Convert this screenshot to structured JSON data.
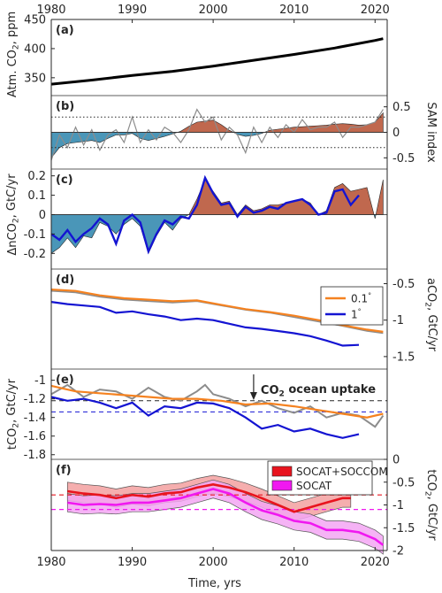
{
  "figure": {
    "x_domain": [
      1980,
      2021.5
    ],
    "x_ticks": [
      1980,
      1990,
      2000,
      2010,
      2020
    ],
    "x_tick_labels": [
      "1980",
      "1990",
      "2000",
      "2010",
      "2020"
    ],
    "xlabel": "Time, yrs",
    "colors": {
      "axis": "#262626",
      "positive_fill": "#c0684e",
      "negative_fill": "#4a96b8",
      "gray_line": "#8c8c8c",
      "orange": "#f58220",
      "blue": "#1414d2",
      "red": "#e8141e",
      "red_band": "#f3a0a0",
      "magenta": "#f018f0",
      "magenta_band": "#f3a6f3"
    }
  },
  "chart_data": [
    {
      "panel_label": "(a)",
      "type": "line",
      "ylabel_parts": [
        "Atm. CO",
        "2",
        ", ppm"
      ],
      "ylim": [
        330,
        450
      ],
      "y_ticks": [
        350,
        400,
        450
      ],
      "y_tick_labels": [
        "350",
        "400",
        "450"
      ],
      "y_axis_side": "left",
      "series": [
        {
          "x": [
            1980,
            1985,
            1990,
            1995,
            2000,
            2005,
            2010,
            2015,
            2020,
            2021
          ],
          "values": [
            339,
            346,
            354,
            361,
            370,
            380,
            390,
            401,
            414,
            417
          ]
        }
      ]
    },
    {
      "panel_label": "(b)",
      "type": "area",
      "ylabel": "SAM index",
      "ylim": [
        -0.72,
        0.72
      ],
      "y_ticks": [
        -0.5,
        0,
        0.5
      ],
      "y_tick_labels": [
        "-0.5",
        "0",
        "0.5"
      ],
      "y_axis_side": "right",
      "dotted_lines": [
        0.3,
        -0.3
      ],
      "annual": {
        "x": [
          1980,
          1981,
          1982,
          1983,
          1984,
          1985,
          1986,
          1987,
          1988,
          1989,
          1990,
          1991,
          1992,
          1993,
          1994,
          1995,
          1996,
          1997,
          1998,
          1999,
          2000,
          2001,
          2002,
          2003,
          2004,
          2005,
          2006,
          2007,
          2008,
          2009,
          2010,
          2011,
          2012,
          2013,
          2014,
          2015,
          2016,
          2017,
          2018,
          2019,
          2020,
          2021
        ],
        "values": [
          -0.55,
          -0.05,
          -0.3,
          0.1,
          -0.25,
          0.05,
          -0.35,
          -0.05,
          0.05,
          -0.2,
          0.3,
          -0.2,
          0.05,
          -0.15,
          0.1,
          0.0,
          -0.2,
          0.05,
          0.45,
          0.2,
          0.3,
          -0.15,
          0.1,
          -0.05,
          -0.4,
          0.1,
          -0.2,
          0.1,
          -0.1,
          0.15,
          0.0,
          0.25,
          0.05,
          0.1,
          0.1,
          0.2,
          -0.1,
          0.1,
          0.1,
          0.15,
          0.2,
          0.45
        ]
      },
      "smoothed": {
        "x": [
          1980,
          1981,
          1982,
          1983,
          1984,
          1985,
          1986,
          1987,
          1988,
          1989,
          1990,
          1991,
          1992,
          1993,
          1994,
          1995,
          1996,
          1997,
          1998,
          1999,
          2000,
          2001,
          2002,
          2003,
          2004,
          2005,
          2006,
          2007,
          2008,
          2009,
          2010,
          2011,
          2012,
          2013,
          2014,
          2015,
          2016,
          2017,
          2018,
          2019,
          2020,
          2021
        ],
        "values": [
          -0.5,
          -0.3,
          -0.22,
          -0.2,
          -0.18,
          -0.16,
          -0.2,
          -0.12,
          -0.05,
          -0.05,
          -0.02,
          -0.12,
          -0.16,
          -0.12,
          -0.08,
          -0.03,
          0.02,
          0.12,
          0.2,
          0.22,
          0.24,
          0.15,
          0.04,
          -0.04,
          -0.08,
          -0.06,
          -0.02,
          0.04,
          0.06,
          0.08,
          0.1,
          0.11,
          0.12,
          0.13,
          0.14,
          0.16,
          0.17,
          0.16,
          0.14,
          0.15,
          0.2,
          0.38
        ]
      }
    },
    {
      "panel_label": "(c)",
      "type": "area",
      "ylabel_parts": [
        "ΔnCO",
        "2",
        ", GtC/yr"
      ],
      "ylim": [
        -0.235,
        0.235
      ],
      "y_ticks": [
        -0.2,
        -0.1,
        0,
        0.1,
        0.2
      ],
      "y_tick_labels": [
        "-0.2",
        "-0.1",
        "0",
        "0.1",
        "0.2"
      ],
      "y_axis_side": "left",
      "fill_series": {
        "x": [
          1980,
          1981,
          1982,
          1983,
          1984,
          1985,
          1986,
          1987,
          1988,
          1989,
          1990,
          1991,
          1992,
          1993,
          1994,
          1995,
          1996,
          1997,
          1998,
          1999,
          2000,
          2001,
          2002,
          2003,
          2004,
          2005,
          2006,
          2007,
          2008,
          2009,
          2010,
          2011,
          2012,
          2013,
          2014,
          2015,
          2016,
          2017,
          2018,
          2019,
          2020,
          2021
        ],
        "values": [
          -0.2,
          -0.17,
          -0.12,
          -0.17,
          -0.11,
          -0.12,
          -0.04,
          -0.06,
          -0.1,
          -0.05,
          -0.02,
          -0.06,
          -0.2,
          -0.11,
          -0.04,
          -0.08,
          -0.02,
          0.0,
          0.08,
          0.18,
          0.12,
          0.06,
          0.07,
          0.0,
          0.05,
          0.02,
          0.03,
          0.05,
          0.05,
          0.06,
          0.07,
          0.08,
          0.06,
          0.0,
          0.02,
          0.14,
          0.16,
          0.12,
          0.13,
          0.14,
          -0.02,
          0.18
        ]
      },
      "line_series": {
        "name": "1°",
        "x": [
          1980,
          1981,
          1982,
          1983,
          1984,
          1985,
          1986,
          1987,
          1988,
          1989,
          1990,
          1991,
          1992,
          1993,
          1994,
          1995,
          1996,
          1997,
          1998,
          1999,
          2000,
          2001,
          2002,
          2003,
          2004,
          2005,
          2006,
          2007,
          2008,
          2009,
          2010,
          2011,
          2012,
          2013,
          2014,
          2015,
          2016,
          2017,
          2018
        ],
        "values": [
          -0.1,
          -0.13,
          -0.08,
          -0.14,
          -0.1,
          -0.07,
          -0.02,
          -0.05,
          -0.15,
          -0.03,
          0.0,
          -0.04,
          -0.19,
          -0.1,
          -0.03,
          -0.05,
          -0.01,
          -0.02,
          0.05,
          0.19,
          0.11,
          0.05,
          0.06,
          -0.01,
          0.04,
          0.01,
          0.02,
          0.04,
          0.03,
          0.06,
          0.07,
          0.08,
          0.05,
          0.0,
          0.01,
          0.12,
          0.13,
          0.05,
          0.1
        ]
      }
    },
    {
      "panel_label": "(d)",
      "type": "line",
      "ylabel_parts": [
        "aCO",
        "2",
        ", GtC/yr"
      ],
      "ylim": [
        -1.55,
        -0.3
      ],
      "y_ticks": [
        -1.5,
        -1,
        -0.5
      ],
      "y_tick_labels": [
        "-1.5",
        "-1",
        "-0.5"
      ],
      "y_axis_side": "right",
      "legend": {
        "position": "top-right",
        "entries": [
          {
            "label": "0.1",
            "sup": "°",
            "color_key": "orange"
          },
          {
            "label": "1",
            "sup": "°",
            "color_key": "blue"
          }
        ]
      },
      "series": [
        {
          "color_key": "gray_line",
          "x": [
            1980,
            1983,
            1986,
            1989,
            1992,
            1995,
            1998,
            2001,
            2004,
            2007,
            2010,
            2013,
            2016,
            2019,
            2021
          ],
          "values": [
            -0.6,
            -0.62,
            -0.68,
            -0.72,
            -0.74,
            -0.76,
            -0.74,
            -0.8,
            -0.86,
            -0.9,
            -0.96,
            -1.02,
            -1.08,
            -1.15,
            -1.18
          ]
        },
        {
          "color_key": "orange",
          "x": [
            1980,
            1983,
            1986,
            1989,
            1992,
            1995,
            1998,
            2001,
            2004,
            2007,
            2010,
            2013,
            2016,
            2019,
            2021
          ],
          "values": [
            -0.58,
            -0.6,
            -0.66,
            -0.7,
            -0.72,
            -0.74,
            -0.73,
            -0.79,
            -0.85,
            -0.89,
            -0.94,
            -1.0,
            -1.07,
            -1.13,
            -1.16
          ]
        },
        {
          "color_key": "blue",
          "x": [
            1980,
            1982,
            1984,
            1986,
            1988,
            1990,
            1992,
            1994,
            1996,
            1998,
            2000,
            2002,
            2004,
            2006,
            2008,
            2010,
            2012,
            2014,
            2016,
            2018
          ],
          "values": [
            -0.75,
            -0.78,
            -0.8,
            -0.82,
            -0.9,
            -0.88,
            -0.92,
            -0.95,
            -1.0,
            -0.98,
            -1.0,
            -1.05,
            -1.1,
            -1.12,
            -1.15,
            -1.18,
            -1.22,
            -1.28,
            -1.35,
            -1.34
          ]
        }
      ]
    },
    {
      "panel_label": "(e)",
      "type": "line",
      "ylabel_parts": [
        "tCO",
        "2",
        ", GtC/yr"
      ],
      "ylim": [
        -1.85,
        -0.88
      ],
      "y_ticks": [
        -1.8,
        -1.6,
        -1.4,
        -1.2,
        -1.0
      ],
      "y_tick_labels": [
        "-1.8",
        "-1.6",
        "-1.4",
        "-1.2",
        "-1"
      ],
      "y_axis_side": "left",
      "annotation": {
        "text_parts": [
          "CO",
          "2",
          " ocean uptake"
        ],
        "arrow_x": 2005
      },
      "dashed_lines": [
        {
          "y": -1.22,
          "color_key": "axis"
        },
        {
          "y": -1.34,
          "color_key": "blue"
        }
      ],
      "series": [
        {
          "color_key": "gray_line",
          "x": [
            1980,
            1982,
            1984,
            1986,
            1988,
            1990,
            1992,
            1994,
            1996,
            1998,
            1999,
            2000,
            2002,
            2004,
            2006,
            2008,
            2010,
            2012,
            2014,
            2016,
            2018,
            2020,
            2021
          ],
          "values": [
            -1.15,
            -1.05,
            -1.18,
            -1.1,
            -1.12,
            -1.2,
            -1.08,
            -1.18,
            -1.22,
            -1.12,
            -1.05,
            -1.15,
            -1.2,
            -1.28,
            -1.22,
            -1.3,
            -1.35,
            -1.28,
            -1.4,
            -1.35,
            -1.38,
            -1.5,
            -1.38
          ]
        },
        {
          "color_key": "orange",
          "x": [
            1980,
            1983,
            1986,
            1989,
            1992,
            1995,
            1998,
            2001,
            2004,
            2007,
            2010,
            2013,
            2016,
            2019,
            2021
          ],
          "values": [
            -1.06,
            -1.12,
            -1.14,
            -1.16,
            -1.18,
            -1.2,
            -1.2,
            -1.22,
            -1.26,
            -1.25,
            -1.28,
            -1.32,
            -1.36,
            -1.4,
            -1.36
          ]
        },
        {
          "color_key": "blue",
          "x": [
            1980,
            1982,
            1984,
            1986,
            1988,
            1990,
            1992,
            1994,
            1996,
            1998,
            2000,
            2002,
            2004,
            2006,
            2008,
            2010,
            2012,
            2014,
            2016,
            2018
          ],
          "values": [
            -1.18,
            -1.22,
            -1.2,
            -1.24,
            -1.3,
            -1.24,
            -1.38,
            -1.28,
            -1.3,
            -1.24,
            -1.25,
            -1.3,
            -1.4,
            -1.52,
            -1.48,
            -1.55,
            -1.52,
            -1.58,
            -1.62,
            -1.58
          ]
        }
      ]
    },
    {
      "panel_label": "(f)",
      "type": "line",
      "ylabel_parts": [
        "tCO",
        "2",
        ", GtC/yr"
      ],
      "ylim": [
        -2.0,
        0.0
      ],
      "y_ticks": [
        -2,
        -1.5,
        -1,
        -0.5,
        0
      ],
      "y_tick_labels": [
        "-2",
        "-1.5",
        "-1",
        "-0.5",
        "0"
      ],
      "y_axis_side": "right",
      "legend": {
        "position": "top-right",
        "entries": [
          {
            "label": "SOCAT+SOCCOM",
            "color_key": "red"
          },
          {
            "label": "SOCAT",
            "color_key": "magenta"
          }
        ]
      },
      "dashed_lines": [
        {
          "y": -0.78,
          "color_key": "red"
        },
        {
          "y": -1.1,
          "color_key": "magenta"
        }
      ],
      "series": [
        {
          "name": "SOCAT+SOCCOM",
          "color_key": "red",
          "band_color_key": "red_band",
          "band_halfwidth": 0.2,
          "x": [
            1982,
            1984,
            1986,
            1988,
            1990,
            1992,
            1994,
            1996,
            1998,
            2000,
            2002,
            2004,
            2006,
            2008,
            2010,
            2012,
            2014,
            2016,
            2017
          ],
          "values": [
            -0.7,
            -0.75,
            -0.78,
            -0.85,
            -0.78,
            -0.82,
            -0.75,
            -0.72,
            -0.62,
            -0.55,
            -0.62,
            -0.72,
            -0.85,
            -1.0,
            -1.15,
            -1.05,
            -0.95,
            -0.85,
            -0.85
          ]
        },
        {
          "name": "SOCAT",
          "color_key": "magenta",
          "band_color_key": "magenta_band",
          "band_halfwidth": 0.2,
          "x": [
            1982,
            1984,
            1986,
            1988,
            1990,
            1992,
            1994,
            1996,
            1998,
            2000,
            2002,
            2004,
            2006,
            2008,
            2010,
            2012,
            2014,
            2016,
            2018,
            2020,
            2021
          ],
          "values": [
            -0.95,
            -1.0,
            -0.98,
            -1.0,
            -0.95,
            -0.95,
            -0.9,
            -0.85,
            -0.75,
            -0.65,
            -0.75,
            -0.95,
            -1.12,
            -1.22,
            -1.35,
            -1.4,
            -1.55,
            -1.55,
            -1.6,
            -1.75,
            -1.88
          ]
        }
      ]
    }
  ]
}
